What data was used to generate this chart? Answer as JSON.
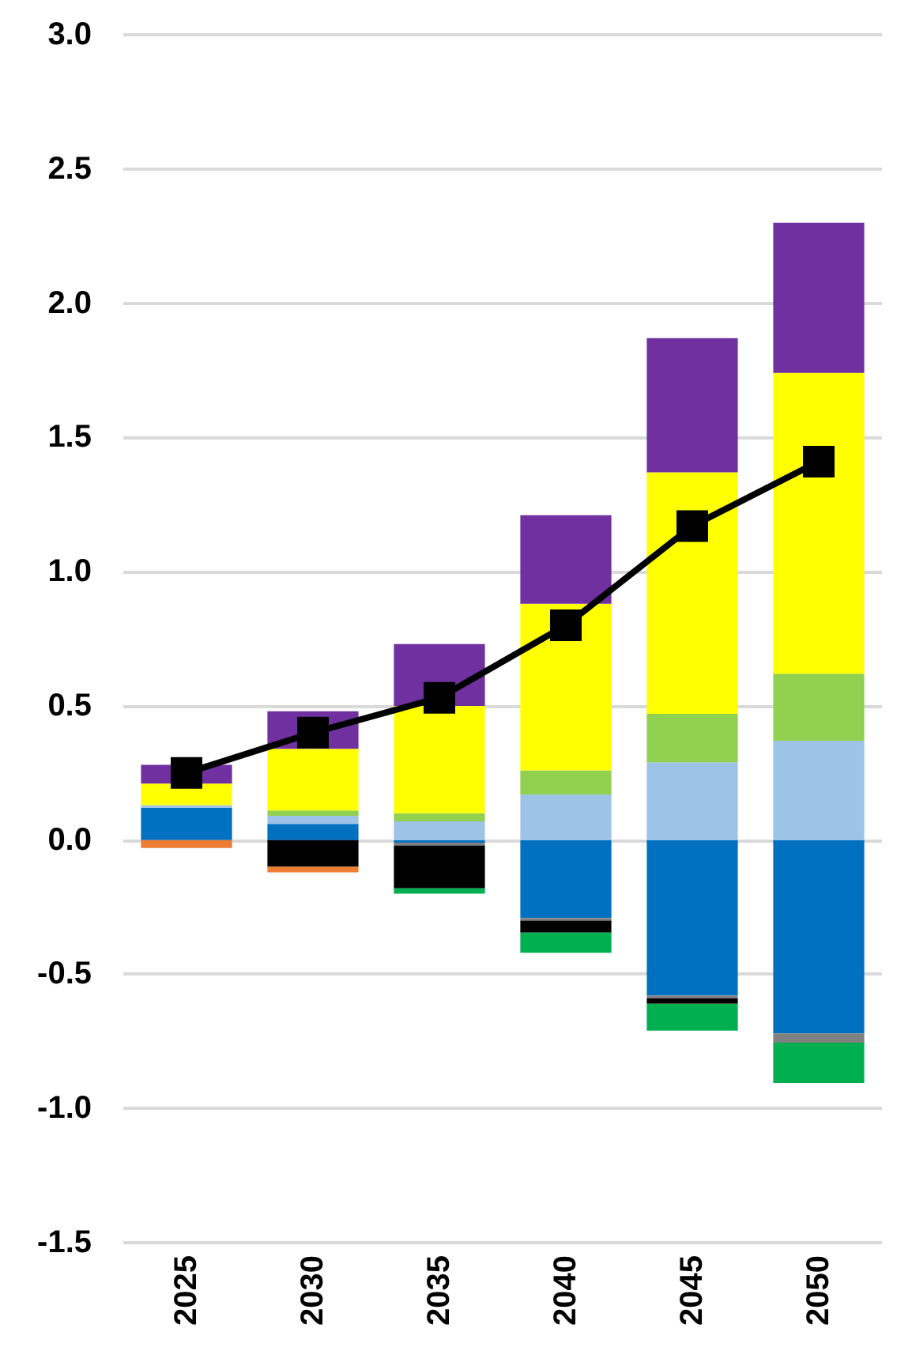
{
  "chart_data": {
    "type": "bar",
    "stacked": true,
    "categories": [
      "2025",
      "2030",
      "2035",
      "2040",
      "2045",
      "2050"
    ],
    "series": [
      {
        "color": "#0070c0",
        "values": [
          0.12,
          0.06,
          -0.01,
          -0.29,
          -0.58,
          -0.72
        ]
      },
      {
        "color": "#9dc3e6",
        "values": [
          0.01,
          0.03,
          0.07,
          0.17,
          0.29,
          0.37
        ]
      },
      {
        "color": "#92d050",
        "values": [
          0,
          0.02,
          0.03,
          0.09,
          0.18,
          0.25
        ]
      },
      {
        "color": "#ffff00",
        "values": [
          0.08,
          0.23,
          0.4,
          0.62,
          0.9,
          1.12
        ]
      },
      {
        "color": "#7030a0",
        "values": [
          0.07,
          0.14,
          0.23,
          0.33,
          0.5,
          0.56
        ]
      },
      {
        "color": "#808080",
        "values": [
          0,
          0,
          -0.01,
          -0.01,
          -0.01,
          -0.035
        ]
      },
      {
        "color": "#000000",
        "values": [
          0,
          -0.1,
          -0.16,
          -0.045,
          -0.02,
          0
        ]
      },
      {
        "color": "#ed7d31",
        "values": [
          -0.03,
          -0.02,
          0,
          0,
          0,
          0
        ]
      },
      {
        "color": "#00b050",
        "values": [
          0,
          0,
          -0.02,
          -0.075,
          -0.1,
          -0.15
        ]
      },
      {
        "type": "line",
        "color": "#000000",
        "marker": "square",
        "values": [
          0.25,
          0.4,
          0.53,
          0.8,
          1.17,
          1.41
        ]
      }
    ],
    "ylim": [
      -1.5,
      3
    ],
    "yticks": [
      {
        "value": -1.5,
        "label": "-1.5"
      },
      {
        "value": -1,
        "label": "-1.0"
      },
      {
        "value": -0.5,
        "label": "-0.5"
      },
      {
        "value": 0,
        "label": "0.0"
      },
      {
        "value": 0.5,
        "label": "0.5"
      },
      {
        "value": 1,
        "label": "1.0"
      },
      {
        "value": 1.5,
        "label": "1.5"
      },
      {
        "value": 2,
        "label": "2.0"
      },
      {
        "value": 2.5,
        "label": "2.5"
      },
      {
        "value": 3,
        "label": "3.0"
      }
    ],
    "grid": "y"
  }
}
